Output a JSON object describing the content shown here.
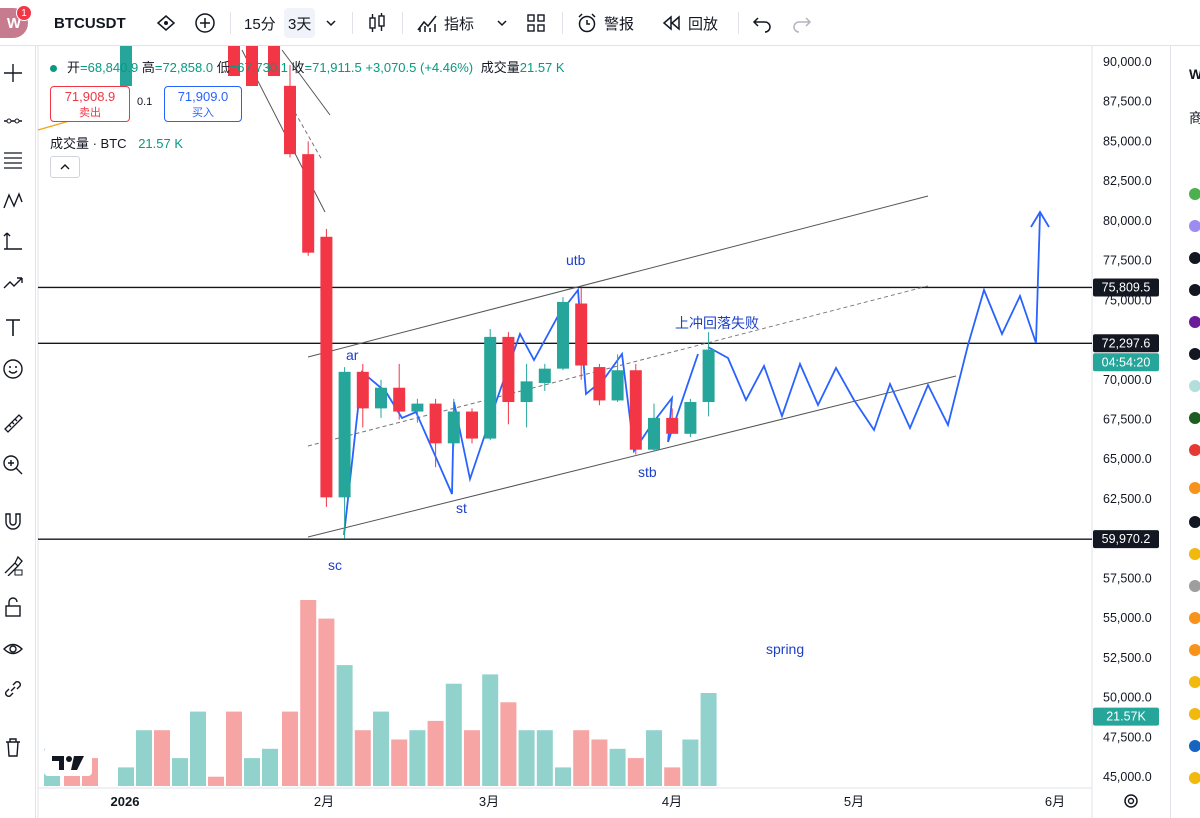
{
  "avatar": {
    "letter": "W",
    "badge": "1"
  },
  "toolbar": {
    "symbol": "BTCUSDT",
    "interval": "15分",
    "range": "3天",
    "indicators_label": "指标",
    "alert_label": "警报",
    "replay_label": "回放"
  },
  "legend": {
    "open_label": "开",
    "open": "=68,840.9",
    "high_label": "高",
    "high": "=72,858.0",
    "low_label": "低",
    "low": "=67,730.1",
    "close_label": "收",
    "close": "=71,911.5",
    "change": "+3,070.5 (+4.46%)",
    "volume_label": "成交量",
    "volume": "21.57 K"
  },
  "trade": {
    "sell_price": "71,908.9",
    "sell_label": "卖出",
    "spread": "0.1",
    "buy_price": "71,909.0",
    "buy_label": "买入"
  },
  "volume_legend": {
    "label": "成交量 · BTC",
    "value": "21.57 K"
  },
  "price_axis": [
    "90,000.0",
    "87,500.0",
    "85,000.0",
    "82,500.0",
    "80,000.0",
    "77,500.0",
    "75,000.0",
    "72,500.0",
    "70,000.0",
    "67,500.0",
    "65,000.0",
    "62,500.0",
    "60,000.0",
    "57,500.0",
    "55,000.0",
    "52,500.0",
    "50,000.0",
    "47,500.0",
    "45,000.0"
  ],
  "price_tags": {
    "level_high": "75,809.5",
    "current": "72,297.6",
    "countdown": "04:54:20",
    "level_low": "59,970.2",
    "volume": "21.57K"
  },
  "time_axis": [
    "2026",
    "2月",
    "3月",
    "4月",
    "5月",
    "6月"
  ],
  "annotations": {
    "sc": "sc",
    "ar": "ar",
    "st": "st",
    "utb": "utb",
    "stb": "stb",
    "failed_breakout": "上冲回落失败",
    "spring": "spring"
  },
  "watchlist_header": "W",
  "watchlist_label": "商",
  "colors": {
    "up": "#26a69a",
    "down": "#f23645",
    "drawing": "#2962ff",
    "vol_up": "#91d3cc",
    "vol_down": "#f6a4a4"
  },
  "chart_data": {
    "type": "candlestick",
    "series": [
      {
        "name": "price",
        "candles": [
          [
            88500,
            89800,
            84000,
            84200
          ],
          [
            84200,
            85000,
            77800,
            78000
          ],
          [
            79000,
            79500,
            62000,
            62600
          ],
          [
            62600,
            70800,
            60000,
            70500
          ],
          [
            70500,
            71000,
            67000,
            68200
          ],
          [
            68200,
            70000,
            67600,
            69500
          ],
          [
            69500,
            71000,
            67500,
            68000
          ],
          [
            68000,
            68800,
            67300,
            68500
          ],
          [
            68500,
            68800,
            64500,
            66000
          ],
          [
            66000,
            68800,
            65800,
            68000
          ],
          [
            68000,
            68200,
            66000,
            66300
          ],
          [
            66300,
            73200,
            66200,
            72700
          ],
          [
            72700,
            73000,
            67200,
            68600
          ],
          [
            68600,
            71000,
            67000,
            69900
          ],
          [
            69800,
            71000,
            69300,
            70700
          ],
          [
            70700,
            75200,
            70600,
            74900
          ],
          [
            74800,
            75800,
            70000,
            70900
          ],
          [
            70800,
            71000,
            68400,
            68700
          ],
          [
            68700,
            71600,
            68600,
            70600
          ],
          [
            70600,
            71000,
            65300,
            65600
          ],
          [
            65600,
            68500,
            65500,
            67600
          ],
          [
            67600,
            68200,
            66700,
            66600
          ],
          [
            66600,
            68800,
            66400,
            68600
          ],
          [
            68600,
            73000,
            67700,
            71900
          ]
        ]
      },
      {
        "name": "volume",
        "values": [
          50,
          62,
          60,
          55,
          48,
          50,
          47,
          48,
          49,
          53,
          48,
          54,
          51,
          48,
          48,
          44,
          48,
          47,
          46,
          45,
          48,
          44,
          47,
          52
        ]
      }
    ],
    "ylim": [
      45000,
      90000
    ]
  }
}
